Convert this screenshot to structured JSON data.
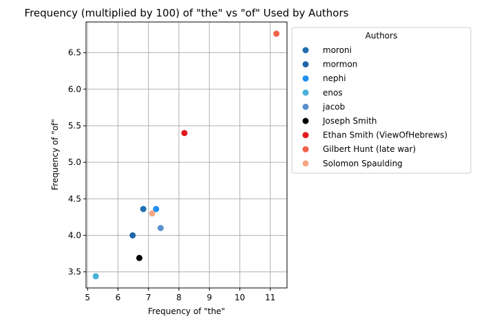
{
  "chart_data": {
    "type": "scatter",
    "title": "Frequency (multiplied by 100) of \"the\" vs \"of\" Used by Authors",
    "xlabel": "Frequency of \"the\"",
    "ylabel": "Frequency of \"of\"",
    "xlim": [
      4.95,
      11.55
    ],
    "ylim": [
      3.28,
      6.92
    ],
    "xticks": [
      5,
      6,
      7,
      8,
      9,
      10,
      11
    ],
    "yticks": [
      3.5,
      4.0,
      4.5,
      5.0,
      5.5,
      6.0,
      6.5
    ],
    "ytick_labels": [
      "3.5",
      "4.0",
      "4.5",
      "5.0",
      "5.5",
      "6.0",
      "6.5"
    ],
    "grid": true,
    "legend_title": "Authors",
    "legend_position": "outside-right",
    "series": [
      {
        "name": "moroni",
        "x": 6.83,
        "y": 4.36,
        "color": "#1f6fb0"
      },
      {
        "name": "mormon",
        "x": 6.48,
        "y": 4.0,
        "color": "#1f66a8"
      },
      {
        "name": "nephi",
        "x": 7.25,
        "y": 4.36,
        "color": "#1f8ff0"
      },
      {
        "name": "enos",
        "x": 5.27,
        "y": 3.44,
        "color": "#47b0d8"
      },
      {
        "name": "jacob",
        "x": 7.4,
        "y": 4.1,
        "color": "#5a90d0"
      },
      {
        "name": "Joseph Smith",
        "x": 6.7,
        "y": 3.69,
        "color": "#000000"
      },
      {
        "name": "Ethan Smith (ViewOfHebrews)",
        "x": 8.18,
        "y": 5.4,
        "color": "#e0191c"
      },
      {
        "name": "Gilbert Hunt (late war)",
        "x": 11.2,
        "y": 6.76,
        "color": "#f0614a"
      },
      {
        "name": "Solomon Spaulding",
        "x": 7.12,
        "y": 4.3,
        "color": "#f8a686"
      }
    ]
  }
}
